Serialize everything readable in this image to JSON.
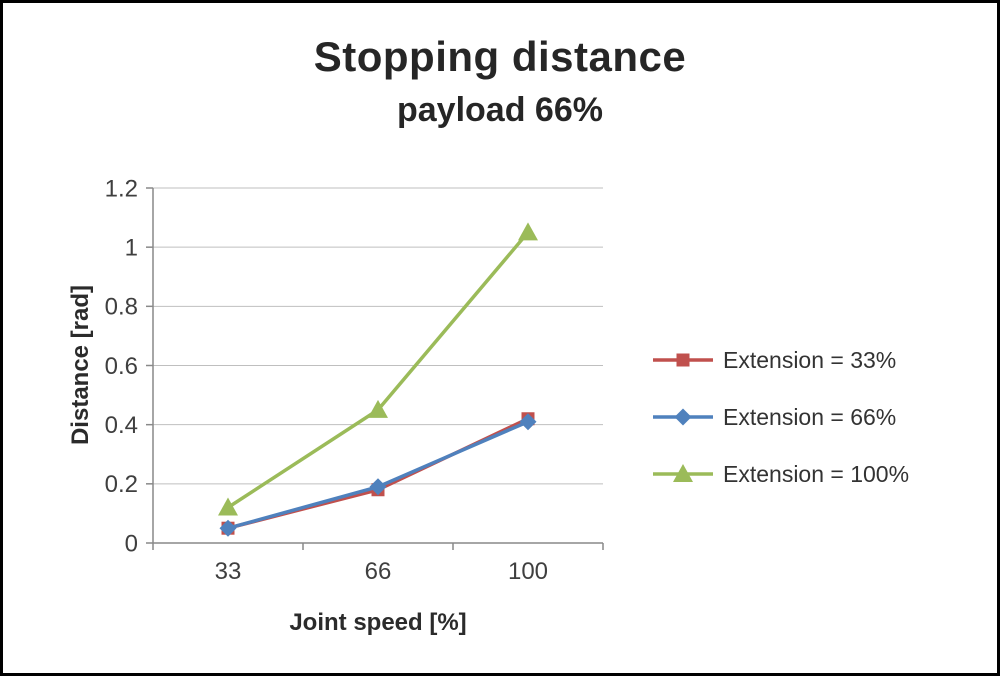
{
  "chart_data": {
    "type": "line",
    "title": "Stopping distance",
    "subtitle": "payload 66%",
    "xlabel": "Joint speed [%]",
    "ylabel": "Distance [rad]",
    "categories": [
      "33",
      "66",
      "100"
    ],
    "series": [
      {
        "name": "Extension = 33%",
        "color": "#C0504D",
        "marker": "square",
        "values": [
          0.05,
          0.18,
          0.42
        ]
      },
      {
        "name": "Extension = 66%",
        "color": "#4F81BD",
        "marker": "diamond",
        "values": [
          0.05,
          0.19,
          0.41
        ]
      },
      {
        "name": "Extension = 100%",
        "color": "#9BBB59",
        "marker": "triangle",
        "values": [
          0.12,
          0.45,
          1.05
        ]
      }
    ],
    "ylim": [
      0,
      1.2
    ],
    "yticks": [
      "0",
      "0.2",
      "0.4",
      "0.6",
      "0.8",
      "1",
      "1.2"
    ],
    "grid": "horizontal",
    "legend_position": "right",
    "colors": {
      "gridline": "#BFBFBF",
      "axis_line": "#898989",
      "tick_text": "#3f3f3f",
      "title_text": "#262626"
    }
  }
}
